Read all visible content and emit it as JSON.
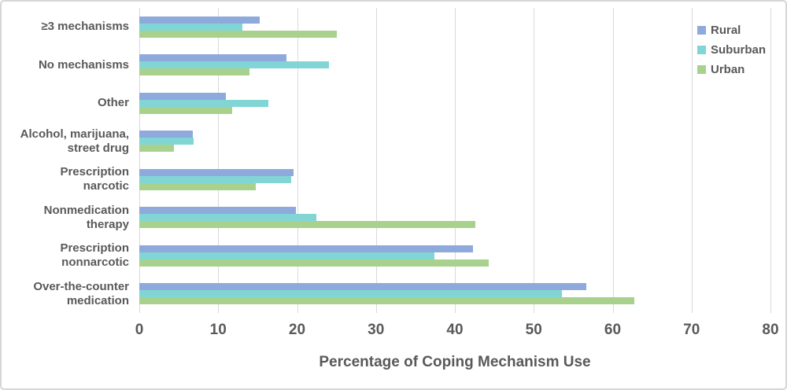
{
  "figure": {
    "background": "#FFFFFF",
    "border_color": "#D6D6D6"
  },
  "chart_data": {
    "type": "bar",
    "orientation": "horizontal",
    "title": "",
    "xlabel": "Percentage of Coping Mechanism Use",
    "ylabel": "",
    "xlim": [
      0,
      80
    ],
    "xticks": [
      "0",
      "10",
      "20",
      "30",
      "40",
      "50",
      "60",
      "70",
      "80"
    ],
    "xtick_values": [
      0,
      10,
      20,
      30,
      40,
      50,
      60,
      70,
      80
    ],
    "grid": "vertical-only",
    "legend_position": "top-right",
    "text_color": "#595959",
    "gridline_color": "#D9D9D9",
    "categories_top_to_bottom": [
      {
        "label": "≥3 mechanisms",
        "lines": [
          "≥3 mechanisms"
        ]
      },
      {
        "label": "No mechanisms",
        "lines": [
          "No mechanisms"
        ]
      },
      {
        "label": "Other",
        "lines": [
          "Other"
        ]
      },
      {
        "label": "Alcohol, marijuana, street drug",
        "lines": [
          "Alcohol, marijuana,",
          "street drug"
        ]
      },
      {
        "label": "Prescription narcotic",
        "lines": [
          "Prescription",
          "narcotic"
        ]
      },
      {
        "label": "Nonmedication therapy",
        "lines": [
          "Nonmedication",
          "therapy"
        ]
      },
      {
        "label": "Prescription nonnarcotic",
        "lines": [
          "Prescription",
          "nonnarcotic"
        ]
      },
      {
        "label": "Over-the-counter medication",
        "lines": [
          "Over-the-counter",
          "medication"
        ]
      }
    ],
    "series": [
      {
        "name": "Rural",
        "color": "#8EA9DB",
        "values": [
          15.3,
          18.7,
          11.0,
          6.8,
          19.6,
          19.9,
          42.3,
          56.7
        ]
      },
      {
        "name": "Suburban",
        "color": "#82D5D5",
        "values": [
          13.1,
          24.0,
          16.4,
          6.9,
          19.3,
          22.4,
          37.4,
          53.6
        ]
      },
      {
        "name": "Urban",
        "color": "#A9D18E",
        "values": [
          25.0,
          14.0,
          11.8,
          4.4,
          14.8,
          42.6,
          44.3,
          62.7
        ]
      }
    ]
  }
}
